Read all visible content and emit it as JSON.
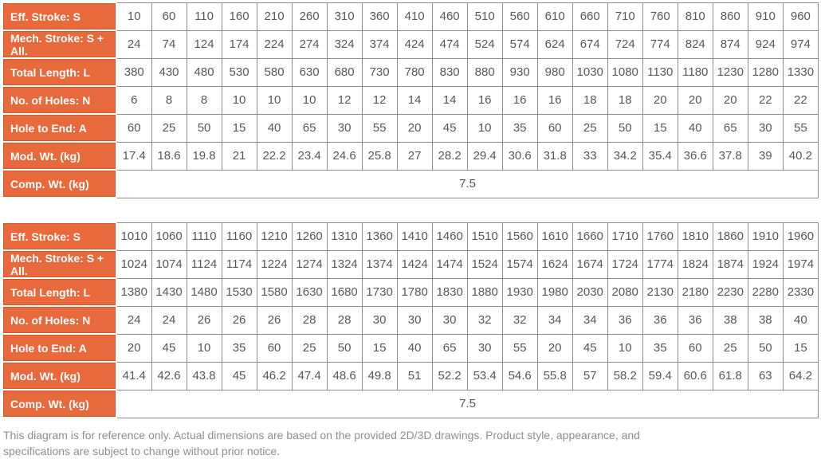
{
  "colors": {
    "header_bg": "#e8693c",
    "header_border_inner": "#cb5a30",
    "header_text": "#ffffff",
    "cell_text": "#565759",
    "cell_border": "#8c8c8c",
    "footer_text": "#8e8e8e"
  },
  "tables": [
    {
      "rows": [
        {
          "label": "Eff. Stroke: S",
          "values": [
            10,
            60,
            110,
            160,
            210,
            260,
            310,
            360,
            410,
            460,
            510,
            560,
            610,
            660,
            710,
            760,
            810,
            860,
            910,
            960
          ]
        },
        {
          "label": "Mech. Stroke: S + All.",
          "values": [
            24,
            74,
            124,
            174,
            224,
            274,
            324,
            374,
            424,
            474,
            524,
            574,
            624,
            674,
            724,
            774,
            824,
            874,
            924,
            974
          ]
        },
        {
          "label": "Total Length: L",
          "values": [
            380,
            430,
            480,
            530,
            580,
            630,
            680,
            730,
            780,
            830,
            880,
            930,
            980,
            1030,
            1080,
            1130,
            1180,
            1230,
            1280,
            1330
          ]
        },
        {
          "label": "No. of Holes: N",
          "values": [
            6,
            8,
            8,
            10,
            10,
            10,
            12,
            12,
            14,
            14,
            16,
            16,
            16,
            18,
            18,
            20,
            20,
            20,
            22,
            22
          ]
        },
        {
          "label": "Hole to End: A",
          "values": [
            60,
            25,
            50,
            15,
            40,
            65,
            30,
            55,
            20,
            45,
            10,
            35,
            60,
            25,
            50,
            15,
            40,
            65,
            30,
            55
          ]
        },
        {
          "label": "Mod. Wt. (kg)",
          "values": [
            17.4,
            18.6,
            19.8,
            21,
            22.2,
            23.4,
            24.6,
            25.8,
            27,
            28.2,
            29.4,
            30.6,
            31.8,
            33,
            34.2,
            35.4,
            36.6,
            37.8,
            39,
            40.2
          ]
        },
        {
          "label": "Comp. Wt. (kg)",
          "merged_value": 7.5
        }
      ]
    },
    {
      "rows": [
        {
          "label": "Eff. Stroke: S",
          "values": [
            1010,
            1060,
            1110,
            1160,
            1210,
            1260,
            1310,
            1360,
            1410,
            1460,
            1510,
            1560,
            1610,
            1660,
            1710,
            1760,
            1810,
            1860,
            1910,
            1960
          ]
        },
        {
          "label": "Mech. Stroke: S + All.",
          "values": [
            1024,
            1074,
            1124,
            1174,
            1224,
            1274,
            1324,
            1374,
            1424,
            1474,
            1524,
            1574,
            1624,
            1674,
            1724,
            1774,
            1824,
            1874,
            1924,
            1974
          ]
        },
        {
          "label": "Total Length: L",
          "values": [
            1380,
            1430,
            1480,
            1530,
            1580,
            1630,
            1680,
            1730,
            1780,
            1830,
            1880,
            1930,
            1980,
            2030,
            2080,
            2130,
            2180,
            2230,
            2280,
            2330
          ]
        },
        {
          "label": "No. of Holes: N",
          "values": [
            24,
            24,
            26,
            26,
            26,
            28,
            28,
            30,
            30,
            30,
            32,
            32,
            34,
            34,
            36,
            36,
            36,
            38,
            38,
            40
          ]
        },
        {
          "label": "Hole to End: A",
          "values": [
            20,
            45,
            10,
            35,
            60,
            25,
            50,
            15,
            40,
            65,
            30,
            55,
            20,
            45,
            10,
            35,
            60,
            25,
            50,
            15
          ]
        },
        {
          "label": "Mod. Wt. (kg)",
          "values": [
            41.4,
            42.6,
            43.8,
            45,
            46.2,
            47.4,
            48.6,
            49.8,
            51,
            52.2,
            53.4,
            54.6,
            55.8,
            57,
            58.2,
            59.4,
            60.6,
            61.8,
            63,
            64.2
          ]
        },
        {
          "label": "Comp. Wt. (kg)",
          "merged_value": 7.5
        }
      ]
    }
  ],
  "footer": {
    "line1": "This diagram is for reference only. Actual dimensions are based on the provided 2D/3D drawings. Product style, appearance, and",
    "line2": "specifications are subject to change without prior notice."
  }
}
